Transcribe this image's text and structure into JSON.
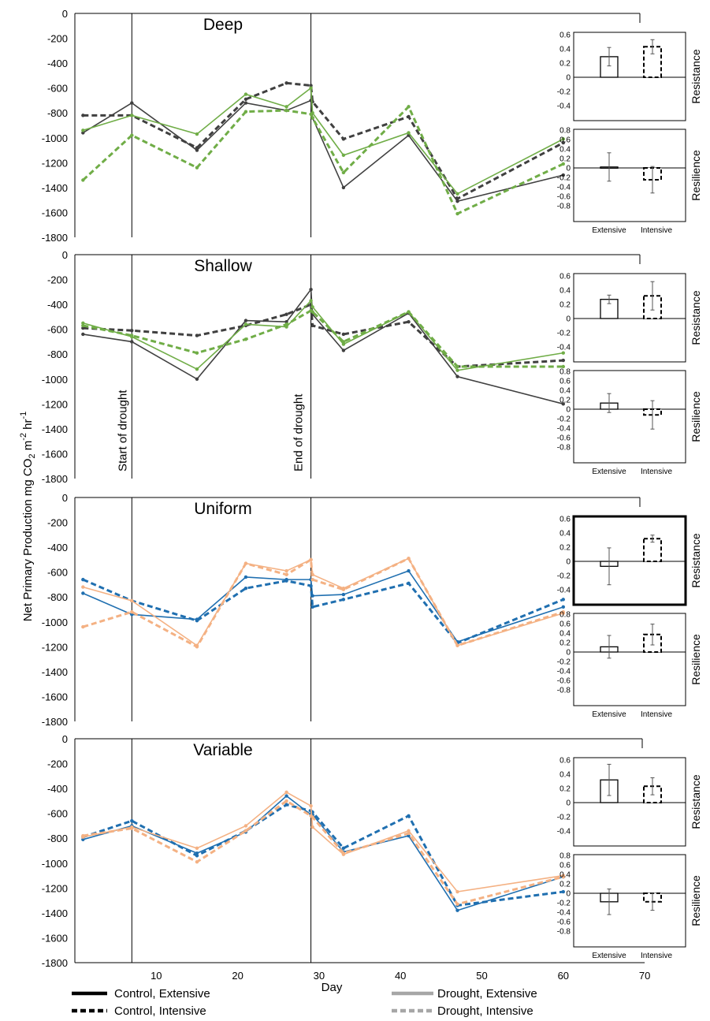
{
  "figure": {
    "ylabel_main": "Net Primary Production mg CO",
    "ylabel_sub": "2",
    "ylabel_units_mid": " m",
    "ylabel_sup1": "-2",
    "ylabel_units_end": " hr",
    "ylabel_sup2": "-1",
    "xlabel": "Day",
    "x_ticks": [
      "10",
      "20",
      "30",
      "40",
      "50",
      "60",
      "70"
    ],
    "y_ticks": [
      "0",
      "-200",
      "-400",
      "-600",
      "-800",
      "-1000",
      "-1200",
      "-1400",
      "-1600",
      "-1800"
    ],
    "annotations": {
      "start": "Start of drought",
      "end": "End of drought"
    },
    "legend": [
      {
        "label": "Control, Extensive",
        "style": "solid",
        "color": "#000000"
      },
      {
        "label": "Control, Intensive",
        "style": "dashed",
        "color": "#000000"
      },
      {
        "label": "Drought, Extensive",
        "style": "solid",
        "color": "#a6a6a6"
      },
      {
        "label": "Drought, Intensive",
        "style": "dashed",
        "color": "#a6a6a6"
      }
    ],
    "inset_categories": [
      "Extensive",
      "Intensive"
    ],
    "inset_labels": {
      "resistance": "Resistance",
      "resilience": "Resilience"
    },
    "resistance_ticks": [
      "0.6",
      "0.4",
      "0.2",
      "0",
      "-0.2",
      "-0.4"
    ],
    "resilience_ticks": [
      "0.8",
      "0.6",
      "0.4",
      "0.2",
      "0",
      "-0.2",
      "-0.4",
      "-0.6",
      "-0.8"
    ]
  },
  "chart_data": [
    {
      "type": "line",
      "title": "Deep",
      "xlabel": "Day",
      "ylabel": "Net Primary Production mg CO2 m-2 hr-1",
      "xlim": [
        0,
        70
      ],
      "ylim": [
        -1800,
        0
      ],
      "drought_start_day": 7,
      "drought_end_day": 29,
      "colors": {
        "control": "#404040",
        "drought": "#70ad47"
      },
      "series": [
        {
          "name": "Control, Extensive",
          "x": [
            1,
            7,
            15,
            21,
            26,
            29,
            29.2,
            33,
            41,
            47,
            60
          ],
          "y": [
            -960,
            -720,
            -1100,
            -720,
            -780,
            -700,
            -840,
            -1400,
            -980,
            -1510,
            -1300
          ]
        },
        {
          "name": "Control, Intensive",
          "x": [
            1,
            7,
            15,
            21,
            26,
            29,
            29.2,
            33,
            41,
            47,
            60
          ],
          "y": [
            -820,
            -820,
            -1080,
            -690,
            -560,
            -580,
            -710,
            -1010,
            -830,
            -1490,
            -1040
          ]
        },
        {
          "name": "Drought, Extensive",
          "x": [
            1,
            7,
            15,
            21,
            26,
            29,
            29.2,
            33,
            41,
            47,
            60
          ],
          "y": [
            -940,
            -820,
            -970,
            -650,
            -750,
            -600,
            -800,
            -1140,
            -960,
            -1450,
            -1010
          ]
        },
        {
          "name": "Drought, Intensive",
          "x": [
            1,
            7,
            15,
            21,
            26,
            29,
            29.2,
            33,
            41,
            47,
            60
          ],
          "y": [
            -1340,
            -980,
            -1240,
            -790,
            -780,
            -810,
            -840,
            -1280,
            -750,
            -1610,
            -1210
          ]
        }
      ],
      "resistance": {
        "values": [
          0.29,
          0.43
        ],
        "errors": [
          0.13,
          0.1
        ]
      },
      "resilience": {
        "values": [
          0.02,
          -0.25
        ],
        "errors": [
          0.3,
          0.28
        ]
      }
    },
    {
      "type": "line",
      "title": "Shallow",
      "xlabel": "Day",
      "ylabel": "Net Primary Production mg CO2 m-2 hr-1",
      "xlim": [
        0,
        70
      ],
      "ylim": [
        -1800,
        0
      ],
      "drought_start_day": 7,
      "drought_end_day": 29,
      "colors": {
        "control": "#404040",
        "drought": "#70ad47"
      },
      "series": [
        {
          "name": "Control, Extensive",
          "x": [
            1,
            7,
            15,
            21,
            26,
            29,
            29.2,
            33,
            41,
            47,
            60
          ],
          "y": [
            -640,
            -700,
            -1000,
            -530,
            -540,
            -280,
            -480,
            -770,
            -470,
            -980,
            -1200
          ]
        },
        {
          "name": "Control, Intensive",
          "x": [
            1,
            7,
            15,
            21,
            26,
            29,
            29.2,
            33,
            41,
            47,
            60
          ],
          "y": [
            -590,
            -610,
            -650,
            -570,
            -480,
            -400,
            -570,
            -640,
            -540,
            -900,
            -850
          ]
        },
        {
          "name": "Drought, Extensive",
          "x": [
            1,
            7,
            15,
            21,
            26,
            29,
            29.2,
            33,
            41,
            47,
            60
          ],
          "y": [
            -550,
            -660,
            -920,
            -560,
            -580,
            -370,
            -420,
            -720,
            -460,
            -930,
            -790
          ]
        },
        {
          "name": "Drought, Intensive",
          "x": [
            1,
            7,
            15,
            21,
            26,
            29,
            29.2,
            33,
            41,
            47,
            60
          ],
          "y": [
            -570,
            -650,
            -790,
            -680,
            -560,
            -450,
            -460,
            -700,
            -460,
            -900,
            -900
          ]
        }
      ],
      "resistance": {
        "values": [
          0.27,
          0.32
        ],
        "errors": [
          0.06,
          0.2
        ]
      },
      "resilience": {
        "values": [
          0.13,
          -0.12
        ],
        "errors": [
          0.2,
          0.3
        ]
      }
    },
    {
      "type": "line",
      "title": "Uniform",
      "xlabel": "Day",
      "ylabel": "Net Primary Production mg CO2 m-2 hr-1",
      "xlim": [
        0,
        70
      ],
      "ylim": [
        -1800,
        0
      ],
      "drought_start_day": 7,
      "drought_end_day": 29,
      "colors": {
        "control": "#1f6fb0",
        "drought": "#f4b183"
      },
      "series": [
        {
          "name": "Control, Extensive",
          "x": [
            1,
            7,
            15,
            21,
            26,
            29,
            29.2,
            33,
            41,
            47,
            60
          ],
          "y": [
            -770,
            -940,
            -980,
            -640,
            -660,
            -660,
            -790,
            -780,
            -590,
            -1160,
            -880
          ]
        },
        {
          "name": "Control, Intensive",
          "x": [
            1,
            7,
            15,
            21,
            26,
            29,
            29.2,
            33,
            41,
            47,
            60
          ],
          "y": [
            -660,
            -830,
            -990,
            -730,
            -670,
            -710,
            -880,
            -820,
            -690,
            -1170,
            -820
          ]
        },
        {
          "name": "Drought, Extensive",
          "x": [
            1,
            7,
            15,
            21,
            26,
            29,
            29.2,
            33,
            41,
            47,
            60
          ],
          "y": [
            -720,
            -830,
            -1190,
            -530,
            -590,
            -500,
            -620,
            -730,
            -490,
            -1190,
            -930
          ]
        },
        {
          "name": "Drought, Intensive",
          "x": [
            1,
            7,
            15,
            21,
            26,
            29,
            29.2,
            33,
            41,
            47,
            60
          ],
          "y": [
            -1040,
            -920,
            -1200,
            -530,
            -620,
            -500,
            -660,
            -740,
            -490,
            -1190,
            -920
          ]
        }
      ],
      "resistance": {
        "values": [
          -0.07,
          0.32
        ],
        "errors": [
          0.26,
          0.05
        ]
      },
      "resilience": {
        "values": [
          0.11,
          0.37
        ],
        "errors": [
          0.24,
          0.22
        ]
      }
    },
    {
      "type": "line",
      "title": "Variable",
      "xlabel": "Day",
      "ylabel": "Net Primary Production mg CO2 m-2 hr-1",
      "xlim": [
        0,
        70
      ],
      "ylim": [
        -1800,
        0
      ],
      "drought_start_day": 7,
      "drought_end_day": 29,
      "colors": {
        "control": "#1f6fb0",
        "drought": "#f4b183"
      },
      "series": [
        {
          "name": "Control, Extensive",
          "x": [
            1,
            7,
            15,
            21,
            26,
            29,
            29.2,
            33,
            41,
            47,
            60
          ],
          "y": [
            -810,
            -700,
            -920,
            -750,
            -460,
            -610,
            -610,
            -910,
            -780,
            -1380,
            -1110
          ]
        },
        {
          "name": "Control, Intensive",
          "x": [
            1,
            7,
            15,
            21,
            26,
            29,
            29.2,
            33,
            41,
            47,
            60
          ],
          "y": [
            -790,
            -660,
            -940,
            -740,
            -530,
            -580,
            -590,
            -880,
            -620,
            -1340,
            -1230
          ]
        },
        {
          "name": "Drought, Extensive",
          "x": [
            1,
            7,
            15,
            21,
            26,
            29,
            29.2,
            33,
            41,
            47,
            60
          ],
          "y": [
            -790,
            -710,
            -880,
            -700,
            -430,
            -540,
            -710,
            -930,
            -740,
            -1230,
            -1100
          ]
        },
        {
          "name": "Drought, Intensive",
          "x": [
            1,
            7,
            15,
            21,
            26,
            29,
            29.2,
            33,
            41,
            47,
            60
          ],
          "y": [
            -780,
            -720,
            -990,
            -740,
            -500,
            -620,
            -630,
            -920,
            -760,
            -1330,
            -1110
          ]
        }
      ],
      "resistance": {
        "values": [
          0.32,
          0.23
        ],
        "errors": [
          0.22,
          0.12
        ]
      },
      "resilience": {
        "values": [
          -0.18,
          -0.18
        ],
        "errors": [
          0.27,
          0.18
        ]
      }
    }
  ]
}
